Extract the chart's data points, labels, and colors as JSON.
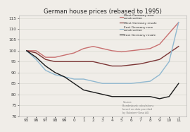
{
  "title": "German house prices (rebased to 1995)",
  "x_labels": [
    "95",
    "96",
    "97",
    "98",
    "99",
    "0",
    "1",
    "2",
    "3",
    "4",
    "5",
    "6",
    "7",
    "8",
    "9",
    "10",
    "11"
  ],
  "west_new": [
    100,
    100,
    97,
    97,
    98,
    99,
    101,
    102,
    101,
    100,
    99.5,
    100,
    100.5,
    101,
    103,
    108,
    113
  ],
  "west_resale": [
    100,
    99,
    96,
    95,
    95,
    95,
    95,
    95,
    94,
    93,
    93,
    93.5,
    94,
    95,
    96,
    99,
    102
  ],
  "east_new": [
    100,
    96,
    91,
    89,
    88,
    87,
    87,
    86,
    85,
    85,
    85,
    85,
    85.5,
    86,
    89,
    95,
    113
  ],
  "east_resale": [
    100,
    97,
    93,
    90,
    88,
    85,
    82,
    81,
    80,
    79,
    79,
    79,
    79,
    79,
    78,
    79,
    85
  ],
  "colors": {
    "west_new": "#c87070",
    "west_resale": "#7b3535",
    "east_new": "#90b8d0",
    "east_resale": "#1a1a1a"
  },
  "legend_labels": [
    "West Germany new\nconstruction",
    "West Germany resale",
    "East Germany new\nconstruction",
    "East Germany resale"
  ],
  "ylim": [
    70,
    116
  ],
  "yticks": [
    70,
    75,
    80,
    85,
    90,
    95,
    100,
    105,
    110,
    115
  ],
  "source_text": "Source:\nBundesbank calculations\nbased on data provided\nby Bulwien+Gesa AG",
  "bg_color": "#f0ede8"
}
